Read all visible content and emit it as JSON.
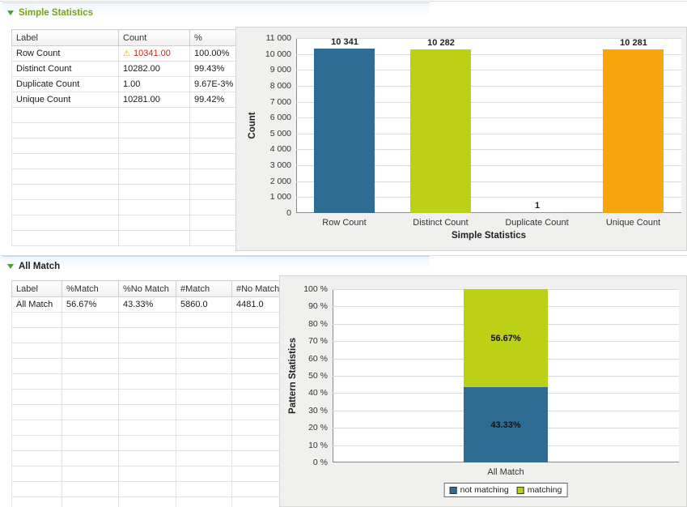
{
  "sections": {
    "simple": {
      "title": "Simple Statistics",
      "table": {
        "columns": [
          "Label",
          "Count",
          "%"
        ],
        "rows": [
          {
            "cells": [
              "Row Count",
              "10341.00",
              "100.00%"
            ],
            "warning": true
          },
          {
            "cells": [
              "Distinct Count",
              "10282.00",
              "99.43%"
            ]
          },
          {
            "cells": [
              "Duplicate Count",
              "1.00",
              "9.67E-3%"
            ]
          },
          {
            "cells": [
              "Unique Count",
              "10281.00",
              "99.42%"
            ]
          }
        ],
        "empty_rows": 9
      }
    },
    "all_match": {
      "title": "All Match",
      "table": {
        "columns": [
          "Label",
          "%Match",
          "%No Match",
          "#Match",
          "#No Match"
        ],
        "rows": [
          {
            "cells": [
              "All Match",
              "56.67%",
              "43.33%",
              "5860.0",
              "4481.0"
            ]
          }
        ],
        "empty_rows": 13
      }
    }
  },
  "icons": {
    "warning": "⚠",
    "twistie": "collapse-triangle-down"
  },
  "colors": {
    "bar_blue": "#2e6c93",
    "bar_green": "#bcd016",
    "bar_orange": "#f7a50c",
    "warning_red": "#cc2222",
    "section_title_green": "#76a113"
  },
  "chart_data": [
    {
      "type": "bar",
      "categories": [
        "Row Count",
        "Distinct Count",
        "Duplicate Count",
        "Unique Count"
      ],
      "values": [
        10341,
        10282,
        1,
        10281
      ],
      "bar_labels": [
        "10 341",
        "10 282",
        "1",
        "10 281"
      ],
      "bar_colors": [
        "#2e6c93",
        "#bcd016",
        "#8f8f8f",
        "#f7a50c"
      ],
      "xlabel": "Simple Statistics",
      "ylabel": "Count",
      "ylim": [
        0,
        11000
      ],
      "ytick_labels": [
        "0",
        "1 000",
        "2 000",
        "3 000",
        "4 000",
        "5 000",
        "6 000",
        "7 000",
        "8 000",
        "9 000",
        "10 000",
        "11 000"
      ],
      "grid": true
    },
    {
      "type": "stacked-bar",
      "categories": [
        "All Match"
      ],
      "series": [
        {
          "name": "not matching",
          "color": "#2e6c93",
          "values": [
            43.33
          ],
          "segment_labels": [
            "43.33%"
          ]
        },
        {
          "name": "matching",
          "color": "#bcd016",
          "values": [
            56.67
          ],
          "segment_labels": [
            "56.67%"
          ]
        }
      ],
      "xlabel": "",
      "ylabel": "Pattern Statistics",
      "ylim": [
        0,
        100
      ],
      "ytick_labels": [
        "0 %",
        "10 %",
        "20 %",
        "30 %",
        "40 %",
        "50 %",
        "60 %",
        "70 %",
        "80 %",
        "90 %",
        "100 %"
      ],
      "grid": true,
      "legend_position": "bottom"
    }
  ]
}
